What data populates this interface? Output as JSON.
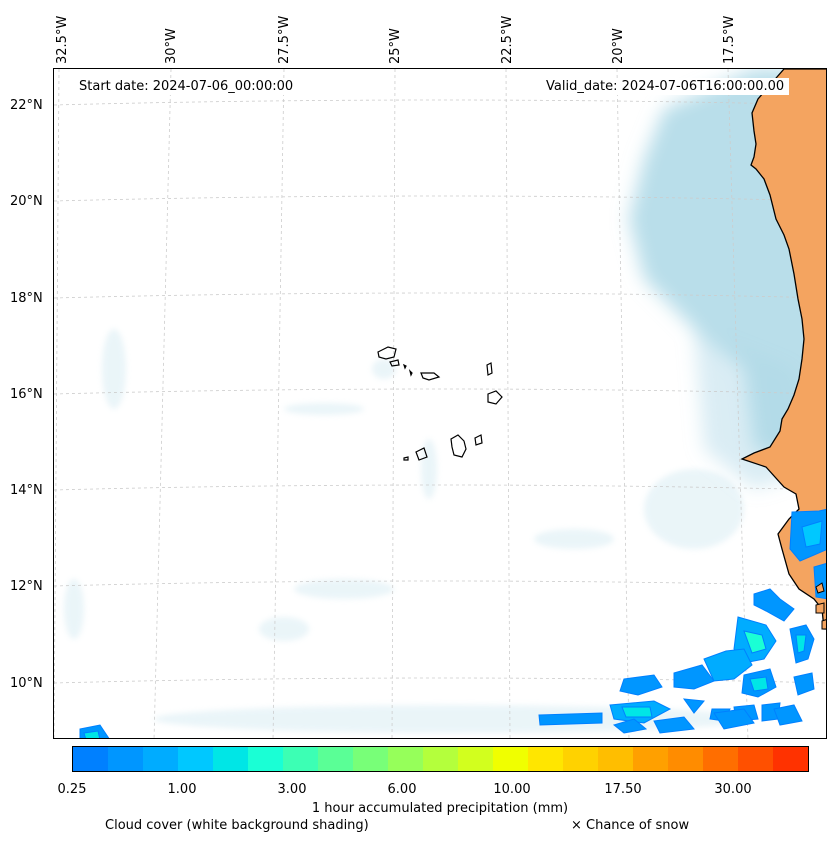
{
  "map": {
    "start_date_label": "Start date: 2024-07-06_00:00:00",
    "valid_date_label": "Valid_date: 2024-07-06T16:00:00.00",
    "longitude_labels": [
      "32.5°W",
      "30°W",
      "27.5°W",
      "25°W",
      "22.5°W",
      "20°W",
      "17.5°W"
    ],
    "latitude_labels": [
      "22°N",
      "20°N",
      "18°N",
      "16°N",
      "14°N",
      "12°N",
      "10°N"
    ],
    "colors": {
      "land": "#f4a460",
      "cloud": "#add8e6",
      "coastline": "#000000",
      "gridline": "#cccccc"
    }
  },
  "colorbar": {
    "title": "1 hour accumulated precipitation (mm)",
    "tick_labels": [
      "0.25",
      "1.00",
      "3.00",
      "6.00",
      "10.00",
      "17.50",
      "30.00"
    ],
    "colors": [
      "#0080ff",
      "#0096ff",
      "#00acff",
      "#00c8ff",
      "#00e6e6",
      "#1affd5",
      "#3cffb4",
      "#5aff96",
      "#78ff78",
      "#96ff5a",
      "#b4ff3c",
      "#d2ff1e",
      "#f0ff00",
      "#ffe600",
      "#ffd200",
      "#ffbe00",
      "#ffa000",
      "#ff8c00",
      "#ff6e00",
      "#ff5000",
      "#ff3200"
    ]
  },
  "footer": {
    "cloud_note": "Cloud cover (white background shading)",
    "snow_note": "× Chance of snow"
  }
}
